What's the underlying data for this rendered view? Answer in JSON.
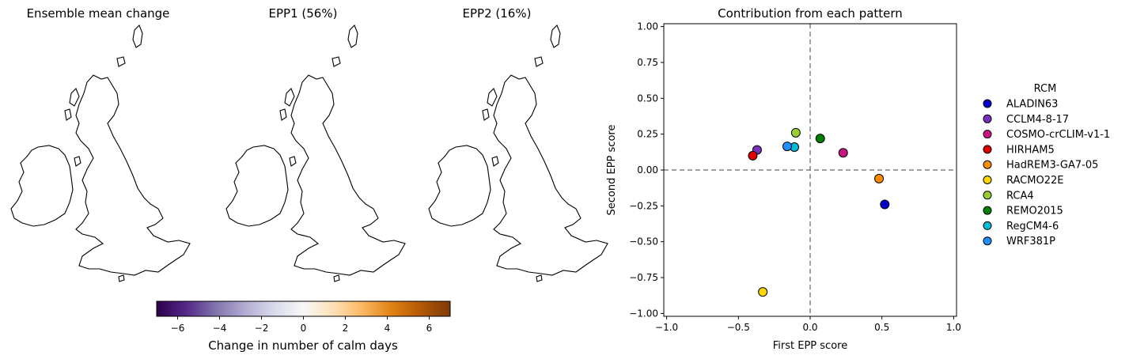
{
  "maps": [
    {
      "title": "Ensemble mean change",
      "region_color": "#f7f3ec",
      "north_color": "#f6f0e6"
    },
    {
      "title": "EPP1 (56%)",
      "region_color": "#fbd8ad",
      "north_color": "#e58e30"
    },
    {
      "title": "EPP2 (16%)",
      "region_color": "#f1eef2",
      "north_color": "#c9c3df"
    }
  ],
  "colorbar": {
    "label": "Change in number of calm days",
    "range": [
      -7,
      7
    ],
    "ticks": [
      -6,
      -4,
      -2,
      0,
      2,
      4,
      6
    ],
    "tick_labels": [
      "−6",
      "−4",
      "−2",
      "0",
      "2",
      "4",
      "6"
    ],
    "colormap_stops": [
      "#2d004b",
      "#542788",
      "#8073ac",
      "#b2abd2",
      "#d8daeb",
      "#f7f7f7",
      "#fee0b6",
      "#fdb863",
      "#e08214",
      "#b35806",
      "#7f3b08"
    ]
  },
  "chart_data": {
    "type": "scatter",
    "title": "Contribution from each pattern",
    "xlabel": "First EPP score",
    "ylabel": "Second EPP score",
    "xlim": [
      -1.02,
      1.02
    ],
    "ylim": [
      -1.02,
      1.02
    ],
    "xticks": [
      -1.0,
      -0.5,
      0.0,
      0.5,
      1.0
    ],
    "xtick_labels": [
      "−1.0",
      "−0.5",
      "0.0",
      "0.5",
      "1.0"
    ],
    "yticks": [
      -1.0,
      -0.75,
      -0.5,
      -0.25,
      0.0,
      0.25,
      0.5,
      0.75,
      1.0
    ],
    "ytick_labels": [
      "−1.00",
      "−0.75",
      "−0.50",
      "−0.25",
      "0.00",
      "0.25",
      "0.50",
      "0.75",
      "1.00"
    ],
    "reference_lines": {
      "x": 0.0,
      "y": 0.0,
      "style": "dashed",
      "color": "#808080"
    },
    "grid": false,
    "legend_title": "RCM",
    "legend_position": "right",
    "series": [
      {
        "name": "ALADIN63",
        "color": "#0000cd",
        "x": 0.52,
        "y": -0.24
      },
      {
        "name": "CCLM4-8-17",
        "color": "#7b2fbe",
        "x": -0.37,
        "y": 0.14
      },
      {
        "name": "COSMO-crCLIM-v1-1",
        "color": "#c71585",
        "x": 0.23,
        "y": 0.12
      },
      {
        "name": "HIRHAM5",
        "color": "#e00000",
        "x": -0.4,
        "y": 0.1
      },
      {
        "name": "HadREM3-GA7-05",
        "color": "#ff8c00",
        "x": 0.48,
        "y": -0.06
      },
      {
        "name": "RACMO22E",
        "color": "#ffd700",
        "x": -0.33,
        "y": -0.85
      },
      {
        "name": "RCA4",
        "color": "#9acd32",
        "x": -0.1,
        "y": 0.26
      },
      {
        "name": "REMO2015",
        "color": "#008000",
        "x": 0.07,
        "y": 0.22
      },
      {
        "name": "RegCM4-6",
        "color": "#00bcd4",
        "x": -0.11,
        "y": 0.16
      },
      {
        "name": "WRF381P",
        "color": "#1e90ff",
        "x": -0.16,
        "y": 0.165
      }
    ]
  }
}
